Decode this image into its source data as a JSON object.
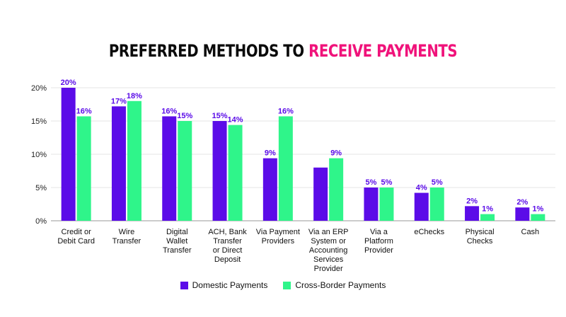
{
  "title": {
    "prefix": "PREFERRED METHODS TO ",
    "highlight": "RECEIVE PAYMENTS",
    "highlight_color": "#f0127a"
  },
  "chart_data": {
    "type": "bar",
    "categories": [
      [
        "Credit or",
        "Debit Card"
      ],
      [
        "Wire",
        "Transfer"
      ],
      [
        "Digital",
        "Wallet",
        "Transfer"
      ],
      [
        "ACH, Bank",
        "Transfer",
        "or Direct",
        "Deposit"
      ],
      [
        "Via Payment",
        "Providers"
      ],
      [
        "Via an ERP",
        "System or",
        "Accounting",
        "Services",
        "Provider"
      ],
      [
        "Via a",
        "Platform",
        "Provider"
      ],
      [
        "eChecks"
      ],
      [
        "Physical",
        "Checks"
      ],
      [
        "Cash"
      ]
    ],
    "series": [
      {
        "name": "Domestic Payments",
        "color": "#5b0ce8",
        "values": [
          20,
          17.2,
          15.7,
          15,
          9.4,
          8,
          5,
          4.2,
          2.2,
          2
        ],
        "labels": [
          "20%",
          "17%",
          "16%",
          "15%",
          "9%",
          "",
          "5%",
          "4%",
          "2%",
          "2%"
        ]
      },
      {
        "name": "Cross-Border Payments",
        "color": "#2ff58a",
        "values": [
          15.7,
          18,
          15,
          14.4,
          15.7,
          9.4,
          5,
          5,
          1,
          1
        ],
        "labels": [
          "16%",
          "18%",
          "15%",
          "14%",
          "16%",
          "9%",
          "5%",
          "5%",
          "1%",
          "1%"
        ]
      }
    ],
    "y_ticks": [
      "0%",
      "5%",
      "10%",
      "15%",
      "20%"
    ],
    "ylim": [
      0,
      20
    ],
    "grid": true,
    "legend_position": "bottom",
    "label_color": "#5b0ce8"
  }
}
